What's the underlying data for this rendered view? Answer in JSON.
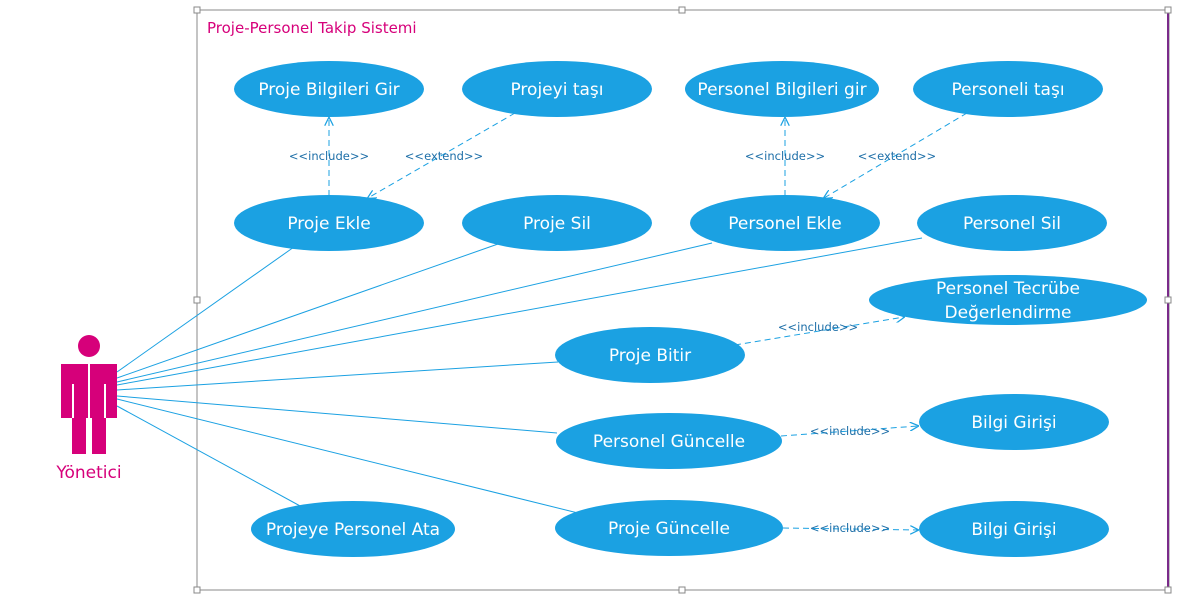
{
  "colors": {
    "accent": "#d6007a",
    "usecase": "#1ba1e2",
    "line": "#1ba1e2",
    "label": "#1e6fa8",
    "frame": "#8a8a8a",
    "frame_right": "#7a2a8a"
  },
  "system": {
    "title": "Proje-Personel Takip Sistemi"
  },
  "actor": {
    "name": "Yönetici",
    "icon": "stick-figure-actor-icon"
  },
  "use_cases": {
    "proje_bilgileri_gir": [
      "Proje Bilgileri Gir"
    ],
    "projeyi_tasi": [
      "Projeyi taşı"
    ],
    "personel_bilgileri_gir": [
      "Personel Bilgileri gir"
    ],
    "personeli_tasi": [
      "Personeli taşı"
    ],
    "proje_ekle": [
      "Proje Ekle"
    ],
    "proje_sil": [
      "Proje Sil"
    ],
    "personel_ekle": [
      "Personel Ekle"
    ],
    "personel_sil": [
      "Personel Sil"
    ],
    "personel_tecrube": [
      "Personel Tecrübe",
      "Değerlendirme"
    ],
    "proje_bitir": [
      "Proje Bitir"
    ],
    "personel_guncelle": [
      "Personel Güncelle"
    ],
    "bilgi_girisi_1": [
      "Bilgi Girişi"
    ],
    "projeye_personel_ata": [
      "Projeye Personel Ata"
    ],
    "proje_guncelle": [
      "Proje Güncelle"
    ],
    "bilgi_girisi_2": [
      "Bilgi Girişi"
    ]
  },
  "relations": [
    {
      "id": "inc_proje",
      "label": "<<include>>"
    },
    {
      "id": "ext_proje",
      "label": "<<extend>>"
    },
    {
      "id": "inc_personel",
      "label": "<<include>>"
    },
    {
      "id": "ext_personel",
      "label": "<<extend>>"
    },
    {
      "id": "inc_bitir",
      "label": "<<include>>"
    },
    {
      "id": "inc_pguncelle",
      "label": "<<include>>"
    },
    {
      "id": "inc_prguncelle",
      "label": "<<include>>"
    }
  ]
}
